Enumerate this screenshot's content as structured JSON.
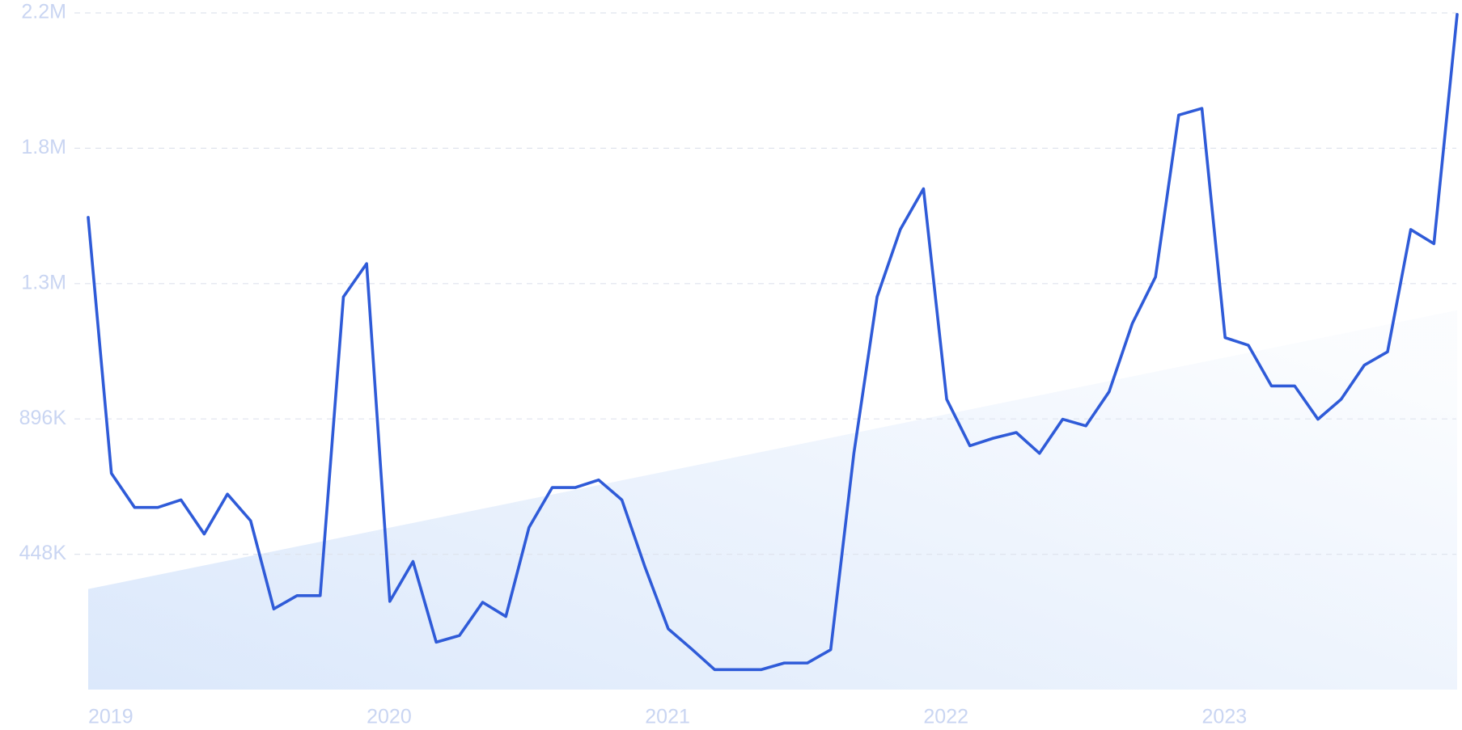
{
  "chart_data": {
    "type": "line",
    "categories": [
      "2019",
      null,
      null,
      null,
      null,
      null,
      null,
      null,
      null,
      null,
      null,
      null,
      "2020",
      null,
      null,
      null,
      null,
      null,
      null,
      null,
      null,
      null,
      null,
      null,
      "2021",
      null,
      null,
      null,
      null,
      null,
      null,
      null,
      null,
      null,
      null,
      null,
      "2022",
      null,
      null,
      null,
      null,
      null,
      null,
      null,
      null,
      null,
      null,
      null,
      "2023",
      null,
      null,
      null,
      null,
      null,
      null,
      null,
      null,
      null,
      null,
      null
    ],
    "series": [
      {
        "color": "#2f5bd8",
        "values": [
          1563000,
          716000,
          603000,
          603000,
          628000,
          515000,
          647000,
          559000,
          267000,
          311000,
          311000,
          1300000,
          1410000,
          292000,
          424000,
          157000,
          179000,
          289000,
          242000,
          537000,
          669000,
          669000,
          694000,
          628000,
          405000,
          201000,
          135000,
          66000,
          66000,
          66000,
          88000,
          88000,
          132000,
          782000,
          1300000,
          1523000,
          1658000,
          961000,
          807000,
          832000,
          851000,
          782000,
          895000,
          873000,
          986000,
          1212000,
          1366000,
          1902000,
          1924000,
          1165000,
          1140000,
          1005000,
          1005000,
          895000,
          961000,
          1074000,
          1118000,
          1523000,
          1476000,
          2235000
        ]
      }
    ],
    "trend": {
      "color": "#dbe8fb",
      "values": [
        332800,
        1255800
      ]
    },
    "ylim": [
      0,
      2240000
    ],
    "yticks": [
      {
        "value": 448000,
        "label": "448K"
      },
      {
        "value": 896000,
        "label": "896K"
      },
      {
        "value": 1344000,
        "label": "1.3M"
      },
      {
        "value": 1792000,
        "label": "1.8M"
      },
      {
        "value": 2240000,
        "label": "2.2M"
      }
    ],
    "grid": true
  }
}
